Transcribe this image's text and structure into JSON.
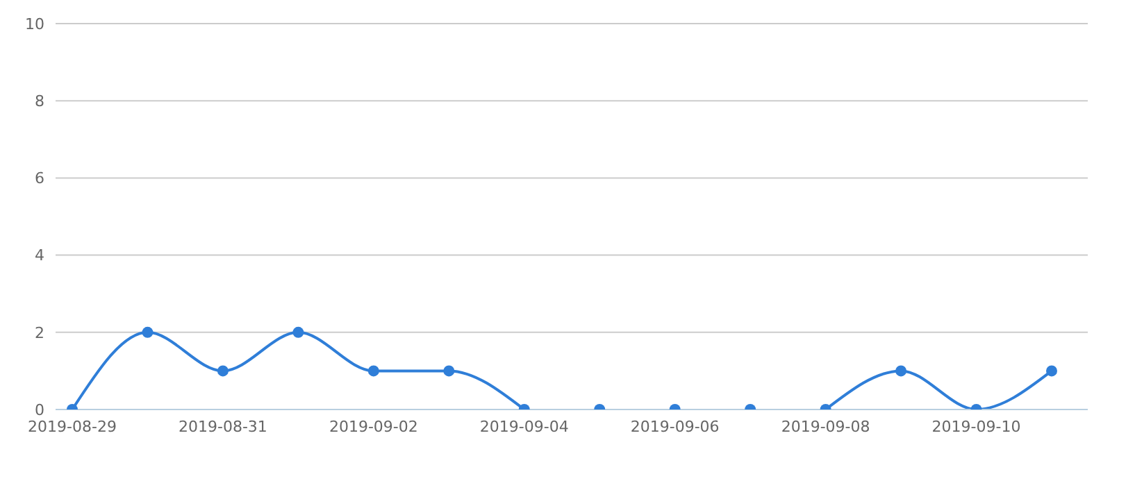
{
  "chart_data": {
    "type": "line",
    "categories": [
      "2019-08-29",
      null,
      "2019-08-31",
      null,
      "2019-09-02",
      null,
      "2019-09-04",
      null,
      "2019-09-06",
      null,
      "2019-09-08",
      null,
      "2019-09-10",
      null
    ],
    "series": [
      {
        "color": "#2f7ed8",
        "values": [
          0,
          2,
          1,
          2,
          1,
          1,
          0,
          null,
          null,
          null,
          0,
          1,
          0,
          1
        ]
      },
      {
        "type": "scatter",
        "color": "#2f7ed8",
        "values": [
          null,
          null,
          null,
          null,
          null,
          null,
          null,
          0,
          0,
          0,
          null,
          null,
          null,
          null
        ]
      }
    ],
    "ylim": [
      0,
      10
    ],
    "yticks": [
      0,
      2,
      4,
      6,
      8,
      10
    ],
    "grid": "y",
    "marker": "circle"
  }
}
